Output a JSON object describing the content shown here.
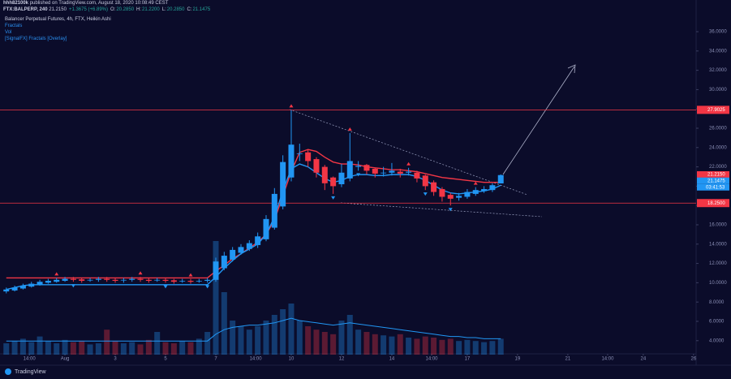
{
  "header": {
    "author": "hhh82100k",
    "published": "published on TradingView.com, August 18, 2020 10:08:49 CEST",
    "symbol": "FTX:BALPERP, 240",
    "last": "21.2150",
    "change": "+1.3675 (+6.89%)",
    "ohlc": [
      {
        "label": "O:",
        "value": "20.2850"
      },
      {
        "label": "H:",
        "value": "21.2200"
      },
      {
        "label": "L:",
        "value": "20.2850"
      },
      {
        "label": "C:",
        "value": "21.1475"
      }
    ]
  },
  "footer": "TradingView",
  "chart_data": {
    "type": "candlestick",
    "title": "Balancer Perpetual Futures, 4h, FTX, Heikin Ashi",
    "legend_items": [
      "Fractals",
      "Vol",
      "[SignalFX] Fractals [Overlay]"
    ],
    "up_color": "#2196f3",
    "down_color": "#f23645",
    "x": [
      0,
      2,
      4,
      6,
      8,
      10,
      12,
      14,
      16,
      18,
      20,
      22,
      24,
      26,
      28,
      30,
      32,
      34,
      36,
      38,
      40,
      42,
      44,
      46,
      48,
      50,
      52,
      54,
      56,
      58,
      60,
      62,
      64,
      66,
      68,
      70,
      72,
      74,
      76,
      78,
      80,
      82,
      84,
      86,
      88,
      90,
      92,
      94,
      96,
      98,
      100,
      102,
      104,
      106,
      108,
      110,
      112,
      114,
      116,
      118
    ],
    "open": [
      9.1,
      9.2,
      9.4,
      9.6,
      9.8,
      10.0,
      10.1,
      10.2,
      10.4,
      10.35,
      10.25,
      10.3,
      10.4,
      10.3,
      10.25,
      10.3,
      10.4,
      10.3,
      10.25,
      10.3,
      10.25,
      10.15,
      10.2,
      10.15,
      10.2,
      10.3,
      11.5,
      12.4,
      13.1,
      13.5,
      13.9,
      14.5,
      15.7,
      17.9,
      20.9,
      23.4,
      23.5,
      22.8,
      22.0,
      20.9,
      20.2,
      20.8,
      22.0,
      22.2,
      21.8,
      21.4,
      21.4,
      21.5,
      21.4,
      21.4,
      21.1,
      20.4,
      19.7,
      19.1,
      18.8,
      18.9,
      19.2,
      19.5,
      19.6,
      20.285
    ],
    "high": [
      9.5,
      9.7,
      9.9,
      10.1,
      10.3,
      10.4,
      10.5,
      10.6,
      10.6,
      10.5,
      10.5,
      10.6,
      10.6,
      10.5,
      10.5,
      10.6,
      10.6,
      10.5,
      10.5,
      10.5,
      10.4,
      10.4,
      10.4,
      10.4,
      10.5,
      12.6,
      13.2,
      13.7,
      14.0,
      14.4,
      15.2,
      17.0,
      19.8,
      23.2,
      27.9,
      24.4,
      23.8,
      23.0,
      22.2,
      21.0,
      22.3,
      25.5,
      22.6,
      22.3,
      21.9,
      22.0,
      22.4,
      21.8,
      21.9,
      21.6,
      21.2,
      20.6,
      19.9,
      19.3,
      19.3,
      19.7,
      19.9,
      20.0,
      20.3,
      21.22
    ],
    "low": [
      8.9,
      9.1,
      9.3,
      9.5,
      9.7,
      9.9,
      10.0,
      10.1,
      10.1,
      10.0,
      10.1,
      10.1,
      10.1,
      10.0,
      10.0,
      10.1,
      10.1,
      10.0,
      10.1,
      10.0,
      9.9,
      10.0,
      9.9,
      10.0,
      10.0,
      10.1,
      11.3,
      12.2,
      12.9,
      13.3,
      13.6,
      14.3,
      15.5,
      17.6,
      20.5,
      22.6,
      22.0,
      20.9,
      19.6,
      19.2,
      19.9,
      20.5,
      21.6,
      21.2,
      20.9,
      21.0,
      21.1,
      20.9,
      21.1,
      20.4,
      19.6,
      19.0,
      18.4,
      18.0,
      18.5,
      18.7,
      19.0,
      19.3,
      19.4,
      20.285
    ],
    "close": [
      9.3,
      9.5,
      9.7,
      9.9,
      10.1,
      10.2,
      10.3,
      10.4,
      10.3,
      10.2,
      10.3,
      10.4,
      10.3,
      10.2,
      10.3,
      10.4,
      10.3,
      10.2,
      10.3,
      10.2,
      10.1,
      10.2,
      10.1,
      10.2,
      10.3,
      12.2,
      12.8,
      13.4,
      13.7,
      14.1,
      14.8,
      16.6,
      19.2,
      22.5,
      24.3,
      23.4,
      22.6,
      21.4,
      20.3,
      20.0,
      21.4,
      22.6,
      22.1,
      21.6,
      21.3,
      21.4,
      21.6,
      21.3,
      21.5,
      20.8,
      20.0,
      19.4,
      18.9,
      18.7,
      19.0,
      19.4,
      19.6,
      19.7,
      20.1,
      21.1475
    ],
    "volume": {
      "color": "#2196f3",
      "values": [
        10,
        12,
        14,
        11,
        16,
        12,
        10,
        13,
        11,
        12,
        9,
        10,
        22,
        12,
        10,
        11,
        9,
        13,
        20,
        11,
        10,
        12,
        11,
        14,
        20,
        100,
        55,
        30,
        25,
        22,
        25,
        30,
        35,
        40,
        45,
        30,
        25,
        22,
        20,
        18,
        30,
        35,
        22,
        20,
        18,
        17,
        16,
        18,
        15,
        14,
        16,
        15,
        13,
        14,
        12,
        13,
        12,
        11,
        12,
        14
      ],
      "ma": [
        12,
        12,
        12,
        12,
        12,
        12,
        12,
        12,
        12,
        12,
        12,
        12,
        12,
        12,
        12,
        12,
        12,
        12,
        12,
        12,
        12,
        12,
        12,
        12,
        12,
        18,
        22,
        24,
        25,
        26,
        26,
        27,
        28,
        30,
        32,
        30,
        29,
        28,
        27,
        26,
        27,
        28,
        27,
        26,
        25,
        24,
        23,
        22,
        21,
        20,
        19,
        18,
        17,
        16,
        16,
        15,
        15,
        14,
        14,
        14
      ]
    },
    "lines": [
      {
        "color": "#f23645",
        "values": [
          10.5,
          10.5,
          10.5,
          10.5,
          10.5,
          10.5,
          10.5,
          10.5,
          10.5,
          10.5,
          10.5,
          10.5,
          10.5,
          10.5,
          10.5,
          10.5,
          10.5,
          10.5,
          10.5,
          10.5,
          10.5,
          10.5,
          10.5,
          10.5,
          10.5,
          11.2,
          11.8,
          12.5,
          13.0,
          13.6,
          14.2,
          15.0,
          16.5,
          19.0,
          21.5,
          23.5,
          23.8,
          23.6,
          23.0,
          22.5,
          22.3,
          22.3,
          22.2,
          22.0,
          21.9,
          21.8,
          21.7,
          21.7,
          21.6,
          21.5,
          21.3,
          21.1,
          20.9,
          20.8,
          20.7,
          20.6,
          20.5,
          20.4,
          20.4,
          20.4
        ]
      },
      {
        "color": "#2196f3",
        "values": [
          9.3,
          9.5,
          9.7,
          9.8,
          9.8,
          9.8,
          9.8,
          9.8,
          9.8,
          9.8,
          9.8,
          9.8,
          9.8,
          9.8,
          9.8,
          9.8,
          9.8,
          9.8,
          9.8,
          9.8,
          9.8,
          9.8,
          9.8,
          9.8,
          9.8,
          10.6,
          11.5,
          12.3,
          13.0,
          13.5,
          14.0,
          15.0,
          16.8,
          19.5,
          21.8,
          22.3,
          22.0,
          21.4,
          20.8,
          20.4,
          20.6,
          21.0,
          21.2,
          21.2,
          21.1,
          21.1,
          21.2,
          21.2,
          21.2,
          21.0,
          20.6,
          20.1,
          19.6,
          19.3,
          19.2,
          19.3,
          19.4,
          19.5,
          19.7,
          20.1
        ]
      }
    ],
    "fractals_up": {
      "color": "#f23645",
      "x": [
        12,
        32,
        44,
        68,
        82,
        96,
        112
      ],
      "values": [
        10.5,
        10.6,
        10.4,
        27.9,
        25.5,
        21.9,
        19.9
      ]
    },
    "fractals_down": {
      "color": "#2196f3",
      "x": [
        16,
        38,
        48,
        78,
        84,
        100,
        106
      ],
      "values": [
        10.1,
        10.0,
        10.0,
        19.2,
        21.6,
        19.6,
        18.0
      ]
    },
    "levels": [
      {
        "value": 27.9025,
        "label": "27.9025"
      },
      {
        "value": 18.25,
        "label": "18.2500"
      }
    ],
    "price_tags": [
      {
        "value": 21.215,
        "label": "21.2150",
        "color": "#f23645"
      },
      {
        "value": 21.1475,
        "label": "21.1475",
        "color": "#2196f3"
      }
    ],
    "countdown": "03:41:53",
    "xlim": [
      -1.5,
      165
    ],
    "xticks": [
      {
        "value": 5.5,
        "label": "14:00"
      },
      {
        "value": 14,
        "label": "Aug"
      },
      {
        "value": 26,
        "label": "3"
      },
      {
        "value": 38,
        "label": "5"
      },
      {
        "value": 50,
        "label": "7"
      },
      {
        "value": 59.5,
        "label": "14:00"
      },
      {
        "value": 68,
        "label": "10"
      },
      {
        "value": 80,
        "label": "12"
      },
      {
        "value": 92,
        "label": "14"
      },
      {
        "value": 101.5,
        "label": "14:00"
      },
      {
        "value": 110,
        "label": "17"
      },
      {
        "value": 122,
        "label": "19"
      },
      {
        "value": 134,
        "label": "21"
      },
      {
        "value": 143.5,
        "label": "14:00"
      },
      {
        "value": 152,
        "label": "24"
      },
      {
        "value": 164,
        "label": "26"
      }
    ],
    "ylim": [
      2.3,
      39.28
    ],
    "yticks": [
      {
        "value": 4,
        "label": "4.0000"
      },
      {
        "value": 6,
        "label": "6.0000"
      },
      {
        "value": 8,
        "label": "8.0000"
      },
      {
        "value": 10,
        "label": "10.0000"
      },
      {
        "value": 12,
        "label": "12.0000"
      },
      {
        "value": 14,
        "label": "14.0000"
      },
      {
        "value": 16,
        "label": "16.0000"
      },
      {
        "value": 18,
        "label": "18.0000"
      },
      {
        "value": 20,
        "label": "20.0000"
      },
      {
        "value": 22,
        "label": "22.0000"
      },
      {
        "value": 24,
        "label": "24.0000"
      },
      {
        "value": 26,
        "label": "26.0000"
      },
      {
        "value": 28,
        "label": "28.0000"
      },
      {
        "value": 30,
        "label": "30.0000"
      },
      {
        "value": 32,
        "label": "32.0000"
      },
      {
        "value": 34,
        "label": "34.0000"
      },
      {
        "value": 36,
        "label": "36.0000"
      }
    ]
  }
}
